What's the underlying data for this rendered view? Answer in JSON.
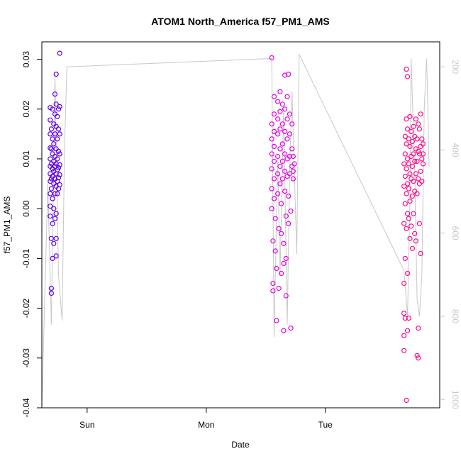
{
  "chart_data": {
    "type": "scatter",
    "title": "ATOM1 North_America f57_PM1_AMS",
    "xlabel": "Date",
    "ylabel": "f57_PM1_AMS",
    "x_axis": {
      "range_days": [
        -0.38,
        2.96
      ],
      "ticks": [
        {
          "v": 0,
          "label": "Sun"
        },
        {
          "v": 1,
          "label": "Mon"
        },
        {
          "v": 2,
          "label": "Tue"
        }
      ]
    },
    "y_axis": {
      "range": [
        -0.04,
        0.0335
      ],
      "ticks": [
        -0.04,
        -0.03,
        -0.02,
        -0.01,
        0.0,
        0.01,
        0.02,
        0.03
      ]
    },
    "y2_axis": {
      "range": [
        1020,
        140
      ],
      "ticks": [
        200,
        400,
        600,
        800,
        1000
      ],
      "color": "#c8c8c8"
    },
    "line_color": "#c8c8c8",
    "colors": {
      "flight1": "#5e00e8",
      "flight2": "#e600e6",
      "flight3": "#ff0a88"
    },
    "pressure_trace": [
      {
        "x": -0.38,
        "y": 1020
      },
      {
        "x": -0.33,
        "y": 480
      },
      {
        "x": -0.3,
        "y": 820
      },
      {
        "x": -0.27,
        "y": 220
      },
      {
        "x": -0.24,
        "y": 700
      },
      {
        "x": -0.21,
        "y": 810
      },
      {
        "x": -0.19,
        "y": 400
      },
      {
        "x": -0.17,
        "y": 200
      },
      {
        "x": 1.55,
        "y": 180
      },
      {
        "x": 1.57,
        "y": 850
      },
      {
        "x": 1.6,
        "y": 420
      },
      {
        "x": 1.62,
        "y": 700
      },
      {
        "x": 1.65,
        "y": 300
      },
      {
        "x": 1.68,
        "y": 820
      },
      {
        "x": 1.7,
        "y": 450
      },
      {
        "x": 1.72,
        "y": 260
      },
      {
        "x": 1.76,
        "y": 650
      },
      {
        "x": 1.78,
        "y": 170
      },
      {
        "x": 2.66,
        "y": 690
      },
      {
        "x": 2.69,
        "y": 800
      },
      {
        "x": 2.71,
        "y": 520
      },
      {
        "x": 2.72,
        "y": 180
      },
      {
        "x": 2.75,
        "y": 450
      },
      {
        "x": 2.77,
        "y": 760
      },
      {
        "x": 2.79,
        "y": 800
      },
      {
        "x": 2.81,
        "y": 700
      },
      {
        "x": 2.83,
        "y": 300
      },
      {
        "x": 2.85,
        "y": 180
      },
      {
        "x": 2.86,
        "y": 290
      },
      {
        "x": 2.87,
        "y": 440
      }
    ],
    "series": [
      {
        "key": "flight1",
        "points": [
          {
            "x": -0.31,
            "y": 0.0203
          },
          {
            "x": -0.31,
            "y": 0.0178
          },
          {
            "x": -0.31,
            "y": 0.015
          },
          {
            "x": -0.31,
            "y": 0.0122
          },
          {
            "x": -0.31,
            "y": 0.01
          },
          {
            "x": -0.31,
            "y": 0.0085
          },
          {
            "x": -0.31,
            "y": 0.007
          },
          {
            "x": -0.31,
            "y": 0.0055
          },
          {
            "x": -0.31,
            "y": 0.003
          },
          {
            "x": -0.31,
            "y": 0.0005
          },
          {
            "x": -0.31,
            "y": -0.0015
          },
          {
            "x": -0.3,
            "y": 0.016
          },
          {
            "x": -0.3,
            "y": 0.012
          },
          {
            "x": -0.3,
            "y": 0.009
          },
          {
            "x": -0.3,
            "y": 0.006
          },
          {
            "x": -0.3,
            "y": 0.004
          },
          {
            "x": -0.3,
            "y": -0.006
          },
          {
            "x": -0.3,
            "y": -0.016
          },
          {
            "x": -0.3,
            "y": -0.017
          },
          {
            "x": -0.29,
            "y": 0.02
          },
          {
            "x": -0.29,
            "y": 0.014
          },
          {
            "x": -0.29,
            "y": 0.011
          },
          {
            "x": -0.29,
            "y": 0.008
          },
          {
            "x": -0.29,
            "y": 0.0065
          },
          {
            "x": -0.29,
            "y": 0.002
          },
          {
            "x": -0.29,
            "y": -0.003
          },
          {
            "x": -0.29,
            "y": -0.01
          },
          {
            "x": -0.28,
            "y": 0.017
          },
          {
            "x": -0.28,
            "y": 0.013
          },
          {
            "x": -0.28,
            "y": 0.0095
          },
          {
            "x": -0.28,
            "y": 0.0075
          },
          {
            "x": -0.28,
            "y": 0.005
          },
          {
            "x": -0.28,
            "y": 0.0
          },
          {
            "x": -0.28,
            "y": -0.007
          },
          {
            "x": -0.27,
            "y": 0.023
          },
          {
            "x": -0.27,
            "y": 0.019
          },
          {
            "x": -0.27,
            "y": 0.015
          },
          {
            "x": -0.27,
            "y": 0.0105
          },
          {
            "x": -0.27,
            "y": 0.0085
          },
          {
            "x": -0.27,
            "y": 0.006
          },
          {
            "x": -0.27,
            "y": 0.003
          },
          {
            "x": -0.27,
            "y": -0.002
          },
          {
            "x": -0.26,
            "y": 0.027
          },
          {
            "x": -0.26,
            "y": 0.021
          },
          {
            "x": -0.26,
            "y": 0.0165
          },
          {
            "x": -0.26,
            "y": 0.012
          },
          {
            "x": -0.26,
            "y": 0.009
          },
          {
            "x": -0.26,
            "y": 0.007
          },
          {
            "x": -0.26,
            "y": 0.0045
          },
          {
            "x": -0.26,
            "y": -0.001
          },
          {
            "x": -0.26,
            "y": -0.006
          },
          {
            "x": -0.26,
            "y": -0.0095
          },
          {
            "x": -0.25,
            "y": 0.0185
          },
          {
            "x": -0.25,
            "y": 0.014
          },
          {
            "x": -0.25,
            "y": 0.01
          },
          {
            "x": -0.25,
            "y": 0.0078
          },
          {
            "x": -0.25,
            "y": 0.0055
          },
          {
            "x": -0.25,
            "y": 0.003
          },
          {
            "x": -0.24,
            "y": 0.02
          },
          {
            "x": -0.24,
            "y": 0.016
          },
          {
            "x": -0.24,
            "y": 0.0115
          },
          {
            "x": -0.24,
            "y": 0.0082
          },
          {
            "x": -0.24,
            "y": 0.0062
          },
          {
            "x": -0.24,
            "y": 0.004
          },
          {
            "x": -0.23,
            "y": 0.0205
          },
          {
            "x": -0.23,
            "y": 0.015
          },
          {
            "x": -0.23,
            "y": 0.011
          },
          {
            "x": -0.23,
            "y": 0.0088
          },
          {
            "x": -0.23,
            "y": 0.0068
          },
          {
            "x": -0.23,
            "y": 0.0048
          },
          {
            "x": -0.23,
            "y": 0.0312
          }
        ]
      },
      {
        "key": "flight2",
        "points": [
          {
            "x": 1.55,
            "y": 0.0303
          },
          {
            "x": 1.55,
            "y": 0.017
          },
          {
            "x": 1.55,
            "y": 0.014
          },
          {
            "x": 1.55,
            "y": 0.011
          },
          {
            "x": 1.55,
            "y": 0.008
          },
          {
            "x": 1.55,
            "y": 0.004
          },
          {
            "x": 1.55,
            "y": 0.0
          },
          {
            "x": 1.56,
            "y": -0.0065
          },
          {
            "x": 1.56,
            "y": -0.015
          },
          {
            "x": 1.56,
            "y": -0.0165
          },
          {
            "x": 1.57,
            "y": 0.0225
          },
          {
            "x": 1.57,
            "y": 0.019
          },
          {
            "x": 1.57,
            "y": 0.0155
          },
          {
            "x": 1.57,
            "y": 0.0125
          },
          {
            "x": 1.57,
            "y": 0.0095
          },
          {
            "x": 1.57,
            "y": 0.006
          },
          {
            "x": 1.57,
            "y": 0.002
          },
          {
            "x": 1.58,
            "y": -0.002
          },
          {
            "x": 1.58,
            "y": -0.0085
          },
          {
            "x": 1.59,
            "y": -0.012
          },
          {
            "x": 1.59,
            "y": -0.0225
          },
          {
            "x": 1.6,
            "y": 0.0215
          },
          {
            "x": 1.6,
            "y": 0.018
          },
          {
            "x": 1.6,
            "y": 0.015
          },
          {
            "x": 1.6,
            "y": 0.0105
          },
          {
            "x": 1.6,
            "y": 0.007
          },
          {
            "x": 1.6,
            "y": 0.003
          },
          {
            "x": 1.61,
            "y": -0.004
          },
          {
            "x": 1.61,
            "y": -0.016
          },
          {
            "x": 1.62,
            "y": 0.0235
          },
          {
            "x": 1.62,
            "y": 0.0195
          },
          {
            "x": 1.62,
            "y": 0.016
          },
          {
            "x": 1.62,
            "y": 0.012
          },
          {
            "x": 1.62,
            "y": 0.0085
          },
          {
            "x": 1.62,
            "y": 0.005
          },
          {
            "x": 1.63,
            "y": 0.001
          },
          {
            "x": 1.63,
            "y": -0.005
          },
          {
            "x": 1.63,
            "y": -0.013
          },
          {
            "x": 1.64,
            "y": 0.021
          },
          {
            "x": 1.64,
            "y": 0.017
          },
          {
            "x": 1.64,
            "y": 0.013
          },
          {
            "x": 1.64,
            "y": 0.0095
          },
          {
            "x": 1.64,
            "y": 0.006
          },
          {
            "x": 1.65,
            "y": -0.007
          },
          {
            "x": 1.65,
            "y": -0.011
          },
          {
            "x": 1.65,
            "y": -0.0245
          },
          {
            "x": 1.66,
            "y": 0.0268
          },
          {
            "x": 1.66,
            "y": 0.02
          },
          {
            "x": 1.66,
            "y": 0.0155
          },
          {
            "x": 1.66,
            "y": 0.011
          },
          {
            "x": 1.66,
            "y": 0.0075
          },
          {
            "x": 1.66,
            "y": 0.0035
          },
          {
            "x": 1.67,
            "y": -0.0015
          },
          {
            "x": 1.67,
            "y": -0.01
          },
          {
            "x": 1.67,
            "y": -0.0175
          },
          {
            "x": 1.68,
            "y": 0.0225
          },
          {
            "x": 1.68,
            "y": 0.018
          },
          {
            "x": 1.68,
            "y": 0.014
          },
          {
            "x": 1.68,
            "y": 0.01
          },
          {
            "x": 1.68,
            "y": 0.0065
          },
          {
            "x": 1.69,
            "y": 0.0025
          },
          {
            "x": 1.69,
            "y": -0.003
          },
          {
            "x": 1.69,
            "y": 0.027
          },
          {
            "x": 1.7,
            "y": 0.019
          },
          {
            "x": 1.7,
            "y": 0.015
          },
          {
            "x": 1.7,
            "y": 0.0105
          },
          {
            "x": 1.7,
            "y": 0.007
          },
          {
            "x": 1.71,
            "y": -0.0005
          },
          {
            "x": 1.71,
            "y": -0.024
          },
          {
            "x": 1.72,
            "y": 0.017
          },
          {
            "x": 1.72,
            "y": 0.012
          },
          {
            "x": 1.72,
            "y": 0.0085
          },
          {
            "x": 1.73,
            "y": 0.006
          },
          {
            "x": 1.73,
            "y": 0.0105
          },
          {
            "x": 1.73,
            "y": 0.0075
          },
          {
            "x": 1.74,
            "y": 0.009
          }
        ]
      },
      {
        "key": "flight3",
        "points": [
          {
            "x": 2.66,
            "y": 0.009
          },
          {
            "x": 2.66,
            "y": 0.0045
          },
          {
            "x": 2.66,
            "y": -0.003
          },
          {
            "x": 2.66,
            "y": -0.015
          },
          {
            "x": 2.66,
            "y": -0.021
          },
          {
            "x": 2.66,
            "y": -0.0255
          },
          {
            "x": 2.66,
            "y": -0.0285
          },
          {
            "x": 2.67,
            "y": 0.0145
          },
          {
            "x": 2.67,
            "y": 0.011
          },
          {
            "x": 2.67,
            "y": 0.0065
          },
          {
            "x": 2.67,
            "y": 0.001
          },
          {
            "x": 2.67,
            "y": -0.01
          },
          {
            "x": 2.67,
            "y": -0.022
          },
          {
            "x": 2.68,
            "y": 0.028
          },
          {
            "x": 2.68,
            "y": 0.018
          },
          {
            "x": 2.68,
            "y": 0.013
          },
          {
            "x": 2.68,
            "y": 0.008
          },
          {
            "x": 2.68,
            "y": 0.003
          },
          {
            "x": 2.68,
            "y": -0.004
          },
          {
            "x": 2.68,
            "y": -0.0385
          },
          {
            "x": 2.69,
            "y": 0.0265
          },
          {
            "x": 2.69,
            "y": 0.016
          },
          {
            "x": 2.69,
            "y": 0.01
          },
          {
            "x": 2.69,
            "y": 0.005
          },
          {
            "x": 2.69,
            "y": -0.001
          },
          {
            "x": 2.69,
            "y": -0.013
          },
          {
            "x": 2.69,
            "y": -0.0245
          },
          {
            "x": 2.7,
            "y": 0.014
          },
          {
            "x": 2.7,
            "y": 0.009
          },
          {
            "x": 2.7,
            "y": 0.004
          },
          {
            "x": 2.7,
            "y": -0.002
          },
          {
            "x": 2.7,
            "y": -0.022
          },
          {
            "x": 2.71,
            "y": 0.0185
          },
          {
            "x": 2.71,
            "y": 0.0125
          },
          {
            "x": 2.71,
            "y": 0.007
          },
          {
            "x": 2.71,
            "y": 0.0015
          },
          {
            "x": 2.71,
            "y": -0.006
          },
          {
            "x": 2.72,
            "y": 0.0155
          },
          {
            "x": 2.72,
            "y": 0.0105
          },
          {
            "x": 2.72,
            "y": 0.006
          },
          {
            "x": 2.72,
            "y": -0.0035
          },
          {
            "x": 2.73,
            "y": 0.0135
          },
          {
            "x": 2.73,
            "y": 0.0085
          },
          {
            "x": 2.73,
            "y": 0.0025
          },
          {
            "x": 2.73,
            "y": -0.008
          },
          {
            "x": 2.74,
            "y": 0.0165
          },
          {
            "x": 2.74,
            "y": 0.011
          },
          {
            "x": 2.74,
            "y": 0.0055
          },
          {
            "x": 2.74,
            "y": -0.001
          },
          {
            "x": 2.75,
            "y": 0.0145
          },
          {
            "x": 2.75,
            "y": 0.0095
          },
          {
            "x": 2.75,
            "y": 0.0035
          },
          {
            "x": 2.75,
            "y": -0.005
          },
          {
            "x": 2.76,
            "y": 0.018
          },
          {
            "x": 2.76,
            "y": 0.012
          },
          {
            "x": 2.76,
            "y": 0.007
          },
          {
            "x": 2.76,
            "y": -0.0065
          },
          {
            "x": 2.77,
            "y": 0.014
          },
          {
            "x": 2.77,
            "y": 0.0095
          },
          {
            "x": 2.77,
            "y": 0.003
          },
          {
            "x": 2.77,
            "y": -0.0295
          },
          {
            "x": 2.78,
            "y": 0.017
          },
          {
            "x": 2.78,
            "y": 0.0115
          },
          {
            "x": 2.78,
            "y": 0.006
          },
          {
            "x": 2.78,
            "y": -0.024
          },
          {
            "x": 2.78,
            "y": -0.03
          },
          {
            "x": 2.79,
            "y": 0.016
          },
          {
            "x": 2.79,
            "y": 0.011
          },
          {
            "x": 2.79,
            "y": 0.005
          },
          {
            "x": 2.79,
            "y": -0.003
          },
          {
            "x": 2.8,
            "y": 0.019
          },
          {
            "x": 2.8,
            "y": 0.0125
          },
          {
            "x": 2.8,
            "y": 0.0075
          },
          {
            "x": 2.8,
            "y": -0.009
          },
          {
            "x": 2.81,
            "y": 0.014
          },
          {
            "x": 2.81,
            "y": 0.01
          },
          {
            "x": 2.81,
            "y": 0.0055
          },
          {
            "x": 2.82,
            "y": 0.013
          },
          {
            "x": 2.82,
            "y": 0.009
          },
          {
            "x": 2.82,
            "y": 0.011
          }
        ]
      }
    ]
  }
}
